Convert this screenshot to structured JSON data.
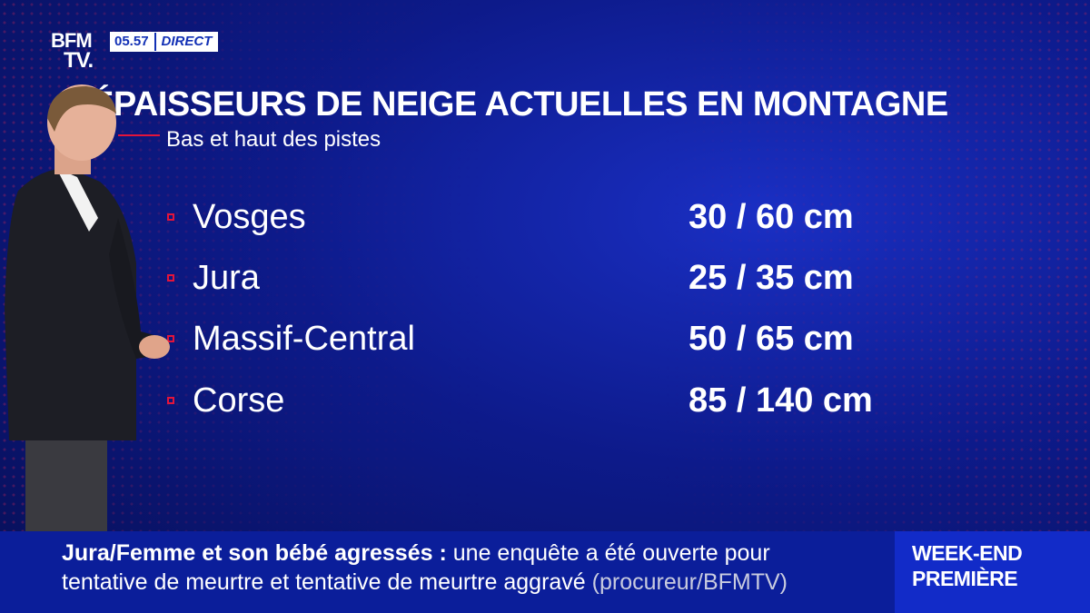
{
  "channel": {
    "logo_line1": "BFM",
    "logo_line2": "TV.",
    "time": "05.57",
    "live_label": "DIRECT"
  },
  "graphic": {
    "title": "ÉPAISSEURS DE NEIGE ACTUELLES EN MONTAGNE",
    "subtitle": "Bas et haut des pistes",
    "rows": [
      {
        "name": "Vosges",
        "value": "30 / 60 cm"
      },
      {
        "name": "Jura",
        "value": "25 / 35 cm"
      },
      {
        "name": "Massif-Central",
        "value": "50 / 65 cm"
      },
      {
        "name": "Corse",
        "value": "85 / 140 cm"
      }
    ]
  },
  "ticker": {
    "headline": "Jura/Femme et son bébé agressés",
    "separator": ":",
    "text_line1": "une enquête a été ouverte pour",
    "text_line2": "tentative de meurtre et tentative de meurtre aggravé",
    "source": "(procureur/BFMTV)"
  },
  "program": {
    "line1": "WEEK-END",
    "line2": "PREMIÈRE"
  },
  "colors": {
    "background": "#0d1a8a",
    "accent": "#e3143b",
    "ticker": "#0b1e9a",
    "badge": "#122bc8"
  }
}
